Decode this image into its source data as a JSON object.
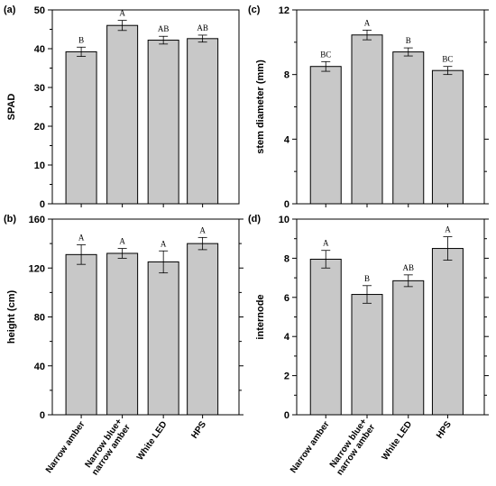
{
  "chart_data": [
    {
      "type": "bar",
      "panel_label": "(a)",
      "ylabel": "SPAD",
      "ylim": [
        0,
        50
      ],
      "yticks": [
        0,
        10,
        20,
        30,
        40,
        50
      ],
      "categories": [
        "Narrow amber",
        "Narrow blue+ narrow amber",
        "White LED",
        "HPS"
      ],
      "values": [
        39.2,
        46.0,
        42.2,
        42.6
      ],
      "errors": [
        1.2,
        1.3,
        1.0,
        0.9
      ],
      "letters": [
        "B",
        "A",
        "AB",
        "AB"
      ]
    },
    {
      "type": "bar",
      "panel_label": "(c)",
      "ylabel": "stem diameter (mm)",
      "ylim": [
        0,
        12
      ],
      "yticks": [
        0,
        4,
        8,
        12
      ],
      "categories": [
        "Narrow amber",
        "Narrow blue+ narrow amber",
        "White LED",
        "HPS"
      ],
      "values": [
        8.5,
        10.45,
        9.4,
        8.25
      ],
      "errors": [
        0.3,
        0.3,
        0.25,
        0.25
      ],
      "letters": [
        "BC",
        "A",
        "B",
        "BC"
      ]
    },
    {
      "type": "bar",
      "panel_label": "(b)",
      "ylabel": "height (cm)",
      "ylim": [
        0,
        160
      ],
      "yticks": [
        0,
        40,
        80,
        120,
        160
      ],
      "categories": [
        "Narrow amber",
        "Narrow blue+ narrow amber",
        "White LED",
        "HPS"
      ],
      "values": [
        131,
        132,
        125,
        140
      ],
      "errors": [
        8,
        4,
        9,
        5
      ],
      "letters": [
        "A",
        "A",
        "A",
        "A"
      ]
    },
    {
      "type": "bar",
      "panel_label": "(d)",
      "ylabel": "internode",
      "ylim": [
        0,
        10
      ],
      "yticks": [
        0,
        2,
        4,
        6,
        8,
        10
      ],
      "categories": [
        "Narrow amber",
        "Narrow blue+ narrow amber",
        "White LED",
        "HPS"
      ],
      "values": [
        7.95,
        6.15,
        6.85,
        8.5
      ],
      "errors": [
        0.45,
        0.45,
        0.3,
        0.6
      ],
      "letters": [
        "A",
        "B",
        "AB",
        "A"
      ]
    }
  ],
  "colors": {
    "bar_fill": "#c8c8c8",
    "bar_stroke": "#000000",
    "axis": "#000000"
  },
  "x_tick_labels": [
    [
      "Narrow amber"
    ],
    [
      "Narrow blue+",
      "narrow amber"
    ],
    [
      "White LED"
    ],
    [
      "HPS"
    ]
  ]
}
